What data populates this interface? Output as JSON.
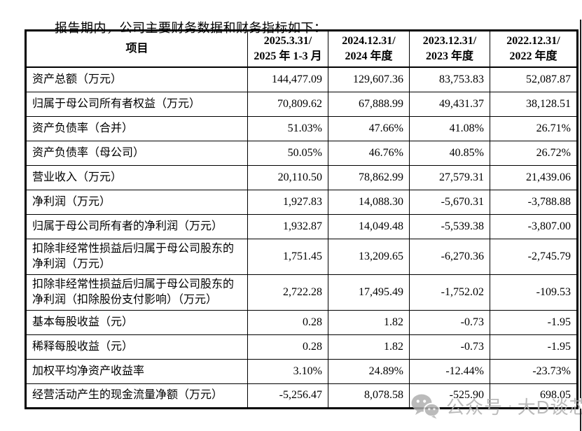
{
  "title": "报告期内，公司主要财务数据和财务指标如下：",
  "table": {
    "header": {
      "item_label": "项目",
      "periods": [
        {
          "line1": "2025.3.31/",
          "line2": "2025 年 1-3 月"
        },
        {
          "line1": "2024.12.31/",
          "line2": "2024 年度"
        },
        {
          "line1": "2023.12.31/",
          "line2": "2023 年度"
        },
        {
          "line1": "2022.12.31/",
          "line2": "2022 年度"
        }
      ]
    },
    "rows": [
      {
        "label": "资产总额（万元）",
        "values": [
          "144,477.09",
          "129,607.36",
          "83,753.83",
          "52,087.87"
        ]
      },
      {
        "label": "归属于母公司所有者权益（万元）",
        "values": [
          "70,809.62",
          "67,888.99",
          "49,431.37",
          "38,128.51"
        ]
      },
      {
        "label": "资产负债率（合并）",
        "values": [
          "51.03%",
          "47.66%",
          "41.08%",
          "26.71%"
        ]
      },
      {
        "label": "资产负债率（母公司）",
        "values": [
          "50.05%",
          "46.76%",
          "40.85%",
          "26.72%"
        ]
      },
      {
        "label": "营业收入（万元）",
        "values": [
          "20,110.50",
          "78,862.99",
          "27,579.31",
          "21,439.06"
        ]
      },
      {
        "label": "净利润（万元）",
        "values": [
          "1,927.83",
          "14,088.30",
          "-5,670.31",
          "-3,788.88"
        ]
      },
      {
        "label": "归属于母公司所有者的净利润（万元）",
        "values": [
          "1,932.87",
          "14,049.48",
          "-5,539.38",
          "-3,807.00"
        ]
      },
      {
        "label": "扣除非经常性损益后归属于母公司股东的净利润（万元）",
        "values": [
          "1,751.45",
          "13,209.65",
          "-6,270.36",
          "-2,745.79"
        ]
      },
      {
        "label": "扣除非经常性损益后归属于母公司股东的净利润（扣除股份支付影响）（万元）",
        "values": [
          "2,722.28",
          "17,495.49",
          "-1,752.02",
          "-109.53"
        ]
      },
      {
        "label": "基本每股收益（元）",
        "values": [
          "0.28",
          "1.82",
          "-0.73",
          "-1.95"
        ]
      },
      {
        "label": "稀释每股收益（元）",
        "values": [
          "0.28",
          "1.82",
          "-0.73",
          "-1.95"
        ]
      },
      {
        "label": "加权平均净资产收益率",
        "values": [
          "3.10%",
          "24.89%",
          "-12.44%",
          "-23.73%"
        ]
      },
      {
        "label": "经营活动产生的现金流量净额（万元）",
        "values": [
          "-5,256.47",
          "8,078.58",
          "-525.90",
          "698.05"
        ]
      }
    ]
  },
  "watermark": {
    "icon": "wechat-icon",
    "text_left": "公众号",
    "separator": "·",
    "text_right": "大D谈芯",
    "color": "#b0b0b0"
  }
}
